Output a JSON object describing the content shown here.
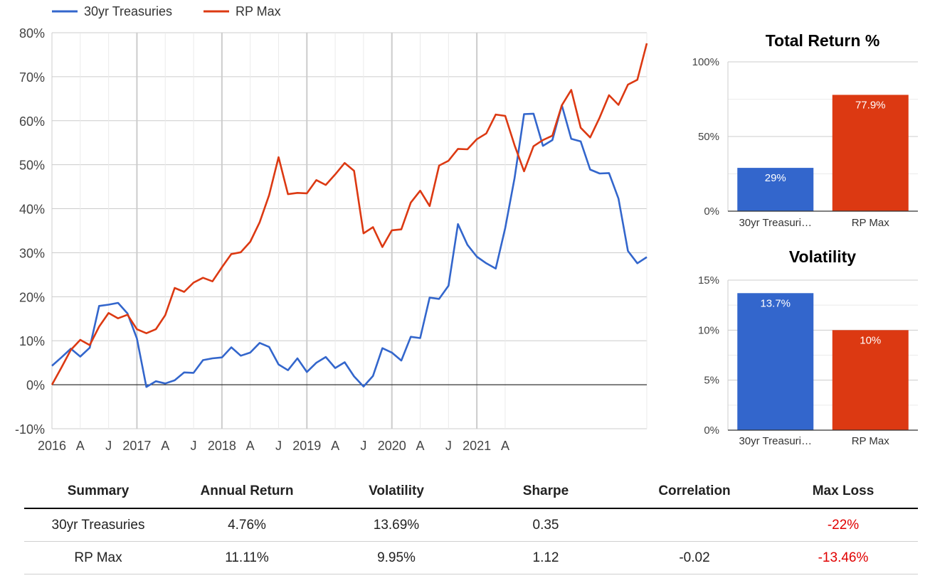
{
  "chart_data": [
    {
      "type": "line",
      "title": "",
      "xlabel": "",
      "ylabel": "",
      "ylim": [
        -10,
        80
      ],
      "y_ticks": [
        "80%",
        "70%",
        "60%",
        "50%",
        "40%",
        "30%",
        "20%",
        "10%",
        "0%",
        "-10%"
      ],
      "x_range": [
        "2016-01",
        "2021-04"
      ],
      "x_ticks": [
        "2016",
        "A",
        "J",
        "2017",
        "A",
        "J",
        "2018",
        "A",
        "J",
        "2019",
        "A",
        "J",
        "2020",
        "A",
        "J",
        "2021",
        "A"
      ],
      "grid": true,
      "legend_position": "top-left",
      "series": [
        {
          "name": "30yr Treasuries",
          "color": "#3366cc",
          "values": [
            4.3,
            6.2,
            8.2,
            6.4,
            8.4,
            17.9,
            18.2,
            18.6,
            16.2,
            10.5,
            -0.5,
            0.8,
            0.3,
            1.0,
            2.8,
            2.7,
            5.6,
            6.0,
            6.2,
            8.5,
            6.6,
            7.3,
            9.5,
            8.6,
            4.6,
            3.3,
            6.0,
            2.9,
            5.0,
            6.3,
            3.8,
            5.1,
            1.9,
            -0.4,
            2.0,
            8.3,
            7.3,
            5.5,
            10.9,
            10.6,
            19.8,
            19.5,
            22.5,
            36.5,
            31.8,
            29.1,
            27.6,
            26.4,
            35.6,
            47.0,
            61.5,
            61.6,
            54.3,
            55.6,
            63.5,
            55.9,
            55.3,
            48.9,
            48.0,
            48.1,
            42.3,
            30.4,
            27.6,
            29.0
          ]
        },
        {
          "name": "RP Max",
          "color": "#dc3912",
          "values": [
            0.0,
            3.9,
            7.9,
            10.2,
            9.0,
            13.2,
            16.3,
            15.1,
            15.9,
            12.6,
            11.7,
            12.6,
            15.8,
            22.0,
            21.1,
            23.2,
            24.3,
            23.5,
            26.7,
            29.7,
            30.1,
            32.5,
            36.9,
            43.1,
            51.7,
            43.3,
            43.6,
            43.5,
            46.5,
            45.4,
            47.8,
            50.4,
            48.6,
            34.4,
            35.8,
            31.3,
            35.1,
            35.3,
            41.4,
            44.1,
            40.6,
            49.8,
            50.9,
            53.6,
            53.5,
            55.8,
            57.1,
            61.4,
            61.1,
            54.4,
            48.5,
            54.2,
            55.6,
            56.6,
            63.5,
            67.0,
            58.4,
            56.2,
            60.7,
            65.8,
            63.6,
            68.2,
            69.3,
            77.6
          ]
        }
      ]
    },
    {
      "type": "bar",
      "title": "Total Return %",
      "categories": [
        "30yr Treasuri…",
        "RP Max"
      ],
      "values": [
        29,
        77.9
      ],
      "data_labels": [
        "29%",
        "77.9%"
      ],
      "colors": [
        "#3366cc",
        "#dc3912"
      ],
      "ylim": [
        0,
        100
      ],
      "y_ticks": [
        "100%",
        "50%",
        "0%"
      ],
      "grid": true
    },
    {
      "type": "bar",
      "title": "Volatility",
      "categories": [
        "30yr Treasuri…",
        "RP Max"
      ],
      "values": [
        13.7,
        10
      ],
      "data_labels": [
        "13.7%",
        "10%"
      ],
      "colors": [
        "#3366cc",
        "#dc3912"
      ],
      "ylim": [
        0,
        15
      ],
      "y_ticks": [
        "15%",
        "10%",
        "5%",
        "0%"
      ],
      "grid": true
    },
    {
      "type": "table",
      "columns": [
        "Summary",
        "Annual Return",
        "Volatility",
        "Sharpe",
        "Correlation",
        "Max Loss"
      ],
      "rows": [
        [
          "30yr Treasuries",
          "4.76%",
          "13.69%",
          "0.35",
          "",
          "-22%"
        ],
        [
          "RP Max",
          "11.11%",
          "9.95%",
          "1.12",
          "-0.02",
          "-13.46%"
        ]
      ],
      "negative_color": "#e00000"
    }
  ]
}
